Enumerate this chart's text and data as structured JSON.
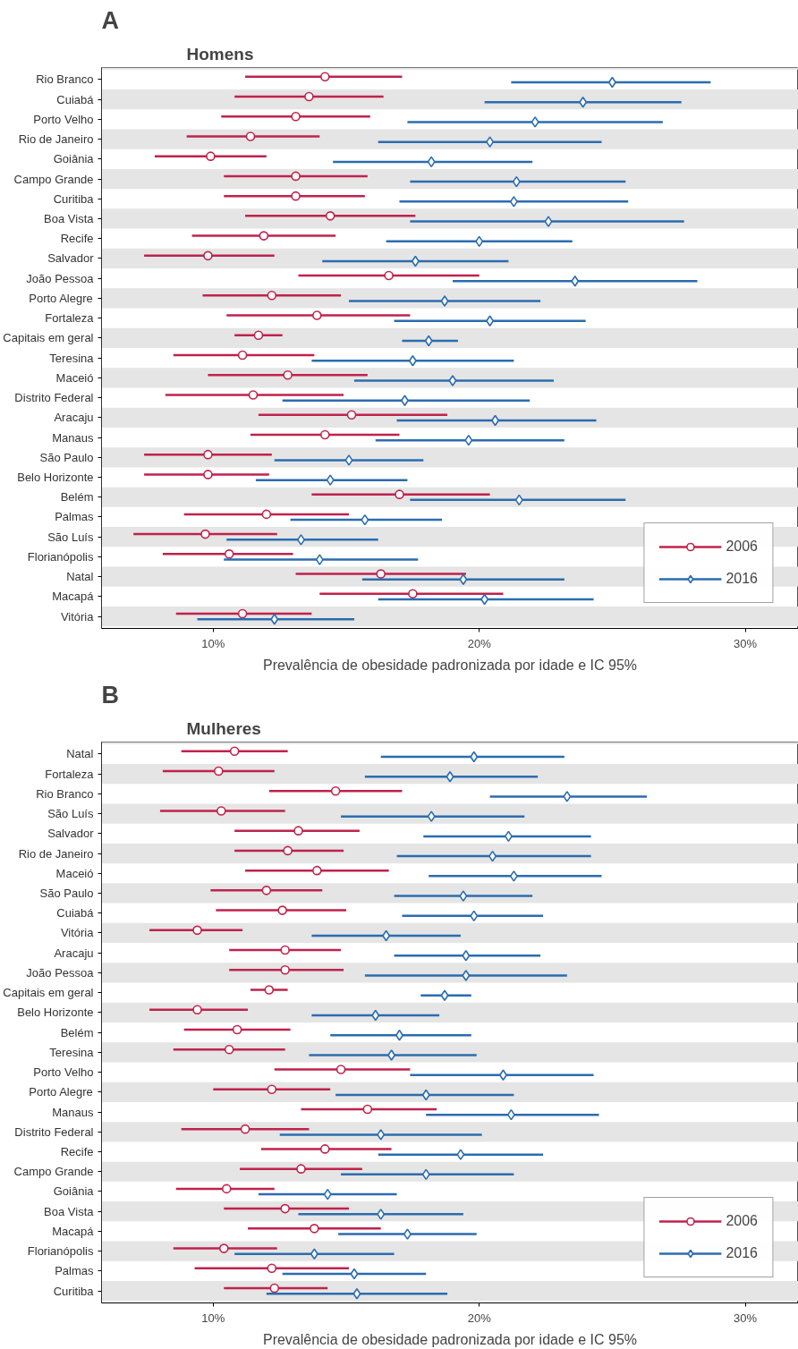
{
  "chart_data": [
    {
      "type": "scatter",
      "orientation": "horizontal",
      "title": "Homens",
      "annotations": [
        "A"
      ],
      "xlabel": "Prevalência de obesidade padronizada por idade e IC 95%",
      "categories": [
        "Rio Branco",
        "Cuiabá",
        "Porto Velho",
        "Rio de Janeiro",
        "Goiânia",
        "Campo Grande",
        "Curitiba",
        "Boa Vista",
        "Recife",
        "Salvador",
        "João Pessoa",
        "Porto Alegre",
        "Fortaleza",
        "Capitais em geral",
        "Teresina",
        "Maceió",
        "Distrito Federal",
        "Aracaju",
        "Manaus",
        "São Paulo",
        "Belo Horizonte",
        "Belém",
        "Palmas",
        "São Luís",
        "Florianópolis",
        "Natal",
        "Macapá",
        "Vitória"
      ],
      "xlim": [
        5.8,
        32
      ],
      "xticks": [
        {
          "value": 10,
          "label": "10%"
        },
        {
          "value": 20,
          "label": "20%"
        },
        {
          "value": 30,
          "label": "30%"
        }
      ],
      "grid": false,
      "legend": "bottom right",
      "series": [
        {
          "name": "2006",
          "color": "#c0224c",
          "marker": "circle",
          "values": [
            14.2,
            13.6,
            13.1,
            11.4,
            9.9,
            13.1,
            13.1,
            14.4,
            11.9,
            9.8,
            16.6,
            12.2,
            13.9,
            11.7,
            11.1,
            12.8,
            11.5,
            15.2,
            14.2,
            9.8,
            9.8,
            17.0,
            12.0,
            9.7,
            10.6,
            16.3,
            17.5,
            11.1
          ],
          "errors": [
            [
              11.2,
              17.1
            ],
            [
              10.8,
              16.4
            ],
            [
              10.3,
              15.9
            ],
            [
              9.0,
              14.0
            ],
            [
              7.8,
              12.0
            ],
            [
              10.4,
              15.8
            ],
            [
              10.4,
              15.7
            ],
            [
              11.2,
              17.6
            ],
            [
              9.2,
              14.6
            ],
            [
              7.4,
              12.3
            ],
            [
              13.2,
              20.0
            ],
            [
              9.6,
              14.8
            ],
            [
              10.5,
              17.4
            ],
            [
              10.8,
              12.6
            ],
            [
              8.5,
              13.8
            ],
            [
              9.8,
              15.8
            ],
            [
              8.2,
              14.9
            ],
            [
              11.7,
              18.8
            ],
            [
              11.4,
              17.0
            ],
            [
              7.4,
              12.2
            ],
            [
              7.4,
              12.1
            ],
            [
              13.7,
              20.4
            ],
            [
              8.9,
              15.1
            ],
            [
              7.0,
              12.4
            ],
            [
              8.1,
              13.0
            ],
            [
              13.1,
              19.5
            ],
            [
              14.0,
              20.9
            ],
            [
              8.6,
              13.7
            ]
          ]
        },
        {
          "name": "2016",
          "color": "#2b6cb0",
          "marker": "diamond",
          "values": [
            25.0,
            23.9,
            22.1,
            20.4,
            18.2,
            21.4,
            21.3,
            22.6,
            20.0,
            17.6,
            23.6,
            18.7,
            20.4,
            18.1,
            17.5,
            19.0,
            17.2,
            20.6,
            19.6,
            15.1,
            14.4,
            21.5,
            15.7,
            13.3,
            14.0,
            19.4,
            20.2,
            12.3
          ],
          "errors": [
            [
              21.2,
              28.7
            ],
            [
              20.2,
              27.6
            ],
            [
              17.3,
              26.9
            ],
            [
              16.2,
              24.6
            ],
            [
              14.5,
              22.0
            ],
            [
              17.4,
              25.5
            ],
            [
              17.0,
              25.6
            ],
            [
              17.4,
              27.7
            ],
            [
              16.5,
              23.5
            ],
            [
              14.1,
              21.1
            ],
            [
              19.0,
              28.2
            ],
            [
              15.1,
              22.3
            ],
            [
              16.8,
              24.0
            ],
            [
              17.1,
              19.2
            ],
            [
              13.7,
              21.3
            ],
            [
              15.3,
              22.8
            ],
            [
              12.6,
              21.9
            ],
            [
              16.9,
              24.4
            ],
            [
              16.1,
              23.2
            ],
            [
              12.3,
              17.9
            ],
            [
              11.6,
              17.3
            ],
            [
              17.4,
              25.5
            ],
            [
              12.9,
              18.6
            ],
            [
              10.5,
              16.2
            ],
            [
              10.4,
              17.7
            ],
            [
              15.6,
              23.2
            ],
            [
              16.2,
              24.3
            ],
            [
              9.4,
              15.3
            ]
          ]
        }
      ]
    },
    {
      "type": "scatter",
      "orientation": "horizontal",
      "title": "Mulheres",
      "annotations": [
        "B"
      ],
      "xlabel": "Prevalência de obesidade padronizada por idade e IC 95%",
      "categories": [
        "Natal",
        "Fortaleza",
        "Rio Branco",
        "São Luís",
        "Salvador",
        "Rio de Janeiro",
        "Maceió",
        "São Paulo",
        "Cuiabá",
        "Vitória",
        "Aracaju",
        "João Pessoa",
        "Capitais em geral",
        "Belo Horizonte",
        "Belém",
        "Teresina",
        "Porto Velho",
        "Porto Alegre",
        "Manaus",
        "Distrito Federal",
        "Recife",
        "Campo Grande",
        "Goiânia",
        "Boa Vista",
        "Macapá",
        "Florianópolis",
        "Palmas",
        "Curitiba"
      ],
      "xlim": [
        5.8,
        32
      ],
      "xticks": [
        {
          "value": 10,
          "label": "10%"
        },
        {
          "value": 20,
          "label": "20%"
        },
        {
          "value": 30,
          "label": "30%"
        }
      ],
      "grid": false,
      "legend": "bottom right",
      "series": [
        {
          "name": "2006",
          "color": "#c0224c",
          "marker": "circle",
          "values": [
            10.8,
            10.2,
            14.6,
            10.3,
            13.2,
            12.8,
            13.9,
            12.0,
            12.6,
            9.4,
            12.7,
            12.7,
            12.1,
            9.4,
            10.9,
            10.6,
            14.8,
            12.2,
            15.8,
            11.2,
            14.2,
            13.3,
            10.5,
            12.7,
            13.8,
            10.4,
            12.2,
            12.3
          ],
          "errors": [
            [
              8.8,
              12.8
            ],
            [
              8.1,
              12.3
            ],
            [
              12.1,
              17.1
            ],
            [
              8.0,
              12.7
            ],
            [
              10.8,
              15.5
            ],
            [
              10.8,
              14.9
            ],
            [
              11.2,
              16.6
            ],
            [
              9.9,
              14.1
            ],
            [
              10.1,
              15.0
            ],
            [
              7.6,
              11.1
            ],
            [
              10.6,
              14.8
            ],
            [
              10.6,
              14.9
            ],
            [
              11.4,
              12.8
            ],
            [
              7.6,
              11.3
            ],
            [
              8.9,
              12.9
            ],
            [
              8.5,
              12.7
            ],
            [
              12.3,
              17.4
            ],
            [
              10.0,
              14.4
            ],
            [
              13.3,
              18.4
            ],
            [
              8.8,
              13.6
            ],
            [
              11.8,
              16.7
            ],
            [
              11.0,
              15.6
            ],
            [
              8.6,
              12.3
            ],
            [
              10.4,
              15.1
            ],
            [
              11.3,
              16.3
            ],
            [
              8.5,
              12.4
            ],
            [
              9.3,
              15.1
            ],
            [
              10.4,
              14.3
            ]
          ]
        },
        {
          "name": "2016",
          "color": "#2b6cb0",
          "marker": "diamond",
          "values": [
            19.8,
            18.9,
            23.3,
            18.2,
            21.1,
            20.5,
            21.3,
            19.4,
            19.8,
            16.5,
            19.5,
            19.5,
            18.7,
            16.1,
            17.0,
            16.7,
            20.9,
            18.0,
            21.2,
            16.3,
            19.3,
            18.0,
            14.3,
            16.3,
            17.3,
            13.8,
            15.3,
            15.4
          ],
          "errors": [
            [
              16.3,
              23.2
            ],
            [
              15.7,
              22.2
            ],
            [
              20.4,
              26.3
            ],
            [
              14.8,
              21.7
            ],
            [
              17.9,
              24.2
            ],
            [
              16.9,
              24.2
            ],
            [
              18.1,
              24.6
            ],
            [
              16.8,
              22.0
            ],
            [
              17.1,
              22.4
            ],
            [
              13.7,
              19.3
            ],
            [
              16.8,
              22.3
            ],
            [
              15.7,
              23.3
            ],
            [
              17.8,
              19.7
            ],
            [
              13.7,
              18.5
            ],
            [
              14.4,
              19.7
            ],
            [
              13.6,
              19.9
            ],
            [
              17.4,
              24.3
            ],
            [
              14.6,
              21.3
            ],
            [
              18.0,
              24.5
            ],
            [
              12.5,
              20.1
            ],
            [
              16.2,
              22.4
            ],
            [
              14.8,
              21.3
            ],
            [
              11.7,
              16.9
            ],
            [
              13.2,
              19.4
            ],
            [
              14.7,
              19.9
            ],
            [
              10.8,
              16.8
            ],
            [
              12.6,
              18.0
            ],
            [
              12.0,
              18.8
            ]
          ]
        }
      ]
    }
  ]
}
